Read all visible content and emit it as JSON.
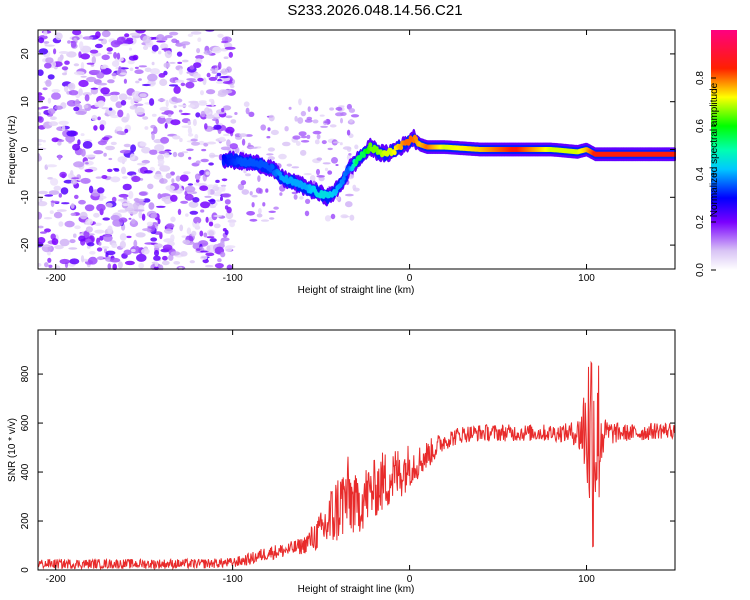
{
  "title": "S233.2026.048.14.56.C21",
  "colors": {
    "snr_line": "#e82b2b",
    "spectro_low": "#c8b4f0",
    "spectro_mid": "#5a00e0",
    "spectro_high": "#e00030"
  },
  "chart_data": [
    {
      "type": "heatmap",
      "xlabel": "Height of straight line (km)",
      "ylabel": "Frequency (Hz)",
      "xlim": [
        -210,
        150
      ],
      "ylim": [
        -25,
        25
      ],
      "xticks": [
        -200,
        -100,
        0,
        100
      ],
      "xtick_labels": [
        "-200",
        "-100",
        "0",
        "100"
      ],
      "yticks": [
        -20,
        -10,
        0,
        10,
        20
      ],
      "ytick_labels": [
        "-20",
        "-10",
        "0",
        "10",
        "20"
      ],
      "colorbar": {
        "label": "Normalized spectral amplitude",
        "range": [
          0,
          1
        ],
        "ticks": [
          0.0,
          0.2,
          0.4,
          0.6,
          0.8
        ],
        "tick_labels": [
          "0.0",
          "0.2",
          "0.4",
          "0.6",
          "0.8"
        ],
        "colormap": "rainbow (white-purple-blue-cyan-green-yellow-red-magenta)"
      },
      "ridge": {
        "name": "dominant frequency track",
        "x": [
          -105,
          -95,
          -85,
          -78,
          -72,
          -65,
          -58,
          -52,
          -46,
          -40,
          -34,
          -30,
          -26,
          -22,
          -18,
          -14,
          -10,
          -6,
          -2,
          2,
          6,
          10,
          20,
          40,
          60,
          80,
          95,
          100,
          105,
          120,
          150
        ],
        "y": [
          -2,
          -2.5,
          -3,
          -4,
          -6,
          -7,
          -8,
          -9,
          -10,
          -8,
          -4,
          -2.5,
          -1,
          0.5,
          -0.5,
          -1,
          -0.5,
          0.5,
          1,
          2.5,
          1,
          0.5,
          0.5,
          0,
          0,
          0,
          -0.5,
          0,
          -1,
          -1,
          -1
        ],
        "amplitude": [
          0.3,
          0.35,
          0.35,
          0.35,
          0.4,
          0.4,
          0.4,
          0.45,
          0.45,
          0.4,
          0.35,
          0.55,
          0.55,
          0.65,
          0.65,
          0.7,
          0.7,
          0.75,
          0.8,
          0.8,
          0.75,
          0.8,
          0.7,
          0.75,
          0.85,
          0.7,
          0.7,
          0.75,
          0.85,
          0.85,
          0.85
        ]
      },
      "noise_region": {
        "x_range": [
          -210,
          -100
        ],
        "y_range": [
          -25,
          25
        ],
        "amplitude": "0.0-0.2 scattered"
      }
    },
    {
      "type": "line",
      "xlabel": "Height of straight line (km)",
      "ylabel": "SNR (10 * v/v)",
      "xlim": [
        -210,
        150
      ],
      "ylim": [
        0,
        980
      ],
      "xticks": [
        -200,
        -100,
        0,
        100
      ],
      "xtick_labels": [
        "-200",
        "-100",
        "0",
        "100"
      ],
      "yticks": [
        0,
        200,
        400,
        600,
        800
      ],
      "ytick_labels": [
        "0",
        "200",
        "400",
        "600",
        "800"
      ],
      "series": [
        {
          "name": "SNR",
          "x": [
            -210,
            -180,
            -150,
            -120,
            -100,
            -90,
            -80,
            -70,
            -60,
            -50,
            -45,
            -40,
            -35,
            -30,
            -25,
            -20,
            -15,
            -10,
            -5,
            0,
            5,
            10,
            15,
            20,
            30,
            40,
            50,
            60,
            70,
            80,
            90,
            95,
            100,
            102,
            104,
            106,
            108,
            110,
            120,
            130,
            140,
            150
          ],
          "values": [
            25,
            25,
            25,
            25,
            30,
            45,
            70,
            80,
            100,
            160,
            200,
            260,
            300,
            260,
            300,
            330,
            360,
            380,
            400,
            430,
            440,
            470,
            500,
            530,
            555,
            560,
            560,
            560,
            560,
            560,
            560,
            560,
            580,
            560,
            560,
            560,
            560,
            560,
            560,
            560,
            570,
            570
          ],
          "noise": [
            20,
            20,
            20,
            20,
            20,
            25,
            30,
            30,
            35,
            80,
            140,
            150,
            170,
            120,
            130,
            120,
            130,
            120,
            110,
            90,
            70,
            60,
            50,
            40,
            35,
            35,
            35,
            35,
            35,
            35,
            40,
            60,
            250,
            500,
            500,
            400,
            250,
            60,
            35,
            35,
            35,
            35
          ]
        }
      ]
    }
  ]
}
